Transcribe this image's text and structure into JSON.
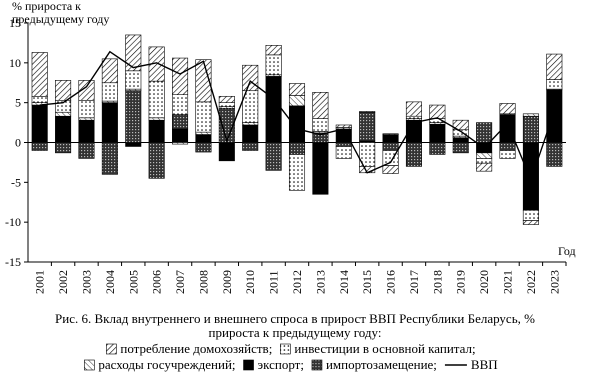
{
  "chart_data": {
    "type": "stacked-bar-line",
    "y_label": "% прироста к предыдущему году",
    "x_label": "Год",
    "caption": [
      "Рис. 6. Вклад внутреннего и внешнего спроса в прирост ВВП Республики Беларусь, %",
      "прироста к предыдущему году:"
    ],
    "categories": [
      "2001",
      "2002",
      "2003",
      "2004",
      "2005",
      "2006",
      "2007",
      "2008",
      "2009",
      "2010",
      "2011",
      "2012",
      "2013",
      "2014",
      "2015",
      "2016",
      "2017",
      "2018",
      "2019",
      "2020",
      "2021",
      "2022",
      "2023"
    ],
    "ylim": [
      -15,
      15
    ],
    "yticks": [
      -15,
      -10,
      -5,
      0,
      5,
      10,
      15
    ],
    "series": [
      {
        "name": "потребление домохозяйств;",
        "color": "#000000",
        "values": [
          5.5,
          2.5,
          2.5,
          3.0,
          4.5,
          4.3,
          4.6,
          5.3,
          0.8,
          3.2,
          1.2,
          1.5,
          3.3,
          0.3,
          -0.8,
          -1.0,
          1.8,
          1.7,
          1.2,
          -1.0,
          1.3,
          -0.5,
          3.2
        ]
      },
      {
        "name": "инвестиции в основной капитал;",
        "color": "#000000",
        "values": [
          0.8,
          1.5,
          2.2,
          2.3,
          2.3,
          4.6,
          2.5,
          3.8,
          0.5,
          4.0,
          2.5,
          -4.5,
          1.6,
          -1.5,
          -3.0,
          -1.9,
          0.3,
          0.5,
          0.8,
          -0.6,
          -1.0,
          -1.3,
          1.2
        ]
      },
      {
        "name": "расходы госучреждений;",
        "color": "#000000",
        "values": [
          0.3,
          0.5,
          0.3,
          0.2,
          0.2,
          0.3,
          -0.2,
          0.3,
          0.2,
          0.3,
          0.2,
          1.3,
          0.2,
          0.2,
          0.1,
          0.1,
          0.2,
          0.2,
          0.2,
          -0.7,
          0.1,
          0.3,
          0.1
        ]
      },
      {
        "name": "экспорт;",
        "color": "#000000",
        "values": [
          4.7,
          3.3,
          2.8,
          5.0,
          -0.5,
          2.8,
          1.7,
          1.0,
          -2.3,
          2.2,
          8.3,
          4.6,
          -6.5,
          1.7,
          0.2,
          1.0,
          2.8,
          2.3,
          0.6,
          -1.3,
          3.5,
          -8.5,
          6.6
        ]
      },
      {
        "name": "импортозамещение;",
        "color": "#000000",
        "values": [
          -1.0,
          -1.3,
          -2.0,
          -4.0,
          6.5,
          -4.5,
          1.8,
          -1.2,
          4.3,
          -1.0,
          -3.5,
          -1.5,
          1.2,
          -0.5,
          3.6,
          -1.0,
          -3.0,
          -1.5,
          -1.3,
          2.5,
          -1.0,
          3.3,
          -3.0
        ]
      },
      {
        "name": "ВВП",
        "type": "line",
        "color": "#000000",
        "values": [
          4.7,
          5.0,
          7.0,
          11.4,
          9.4,
          10.0,
          8.6,
          10.2,
          0.2,
          7.7,
          5.5,
          1.7,
          1.0,
          1.7,
          -3.8,
          -2.5,
          2.5,
          3.1,
          1.4,
          -0.7,
          2.4,
          -4.7,
          3.9
        ]
      }
    ]
  }
}
